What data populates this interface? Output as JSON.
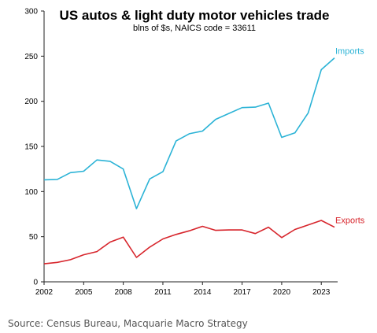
{
  "chart_data": {
    "type": "line",
    "title": "US autos & light duty motor vehicles trade",
    "subtitle": "blns of $s, NAICS code = 33611",
    "x": [
      2002,
      2003,
      2004,
      2005,
      2006,
      2007,
      2008,
      2009,
      2010,
      2011,
      2012,
      2013,
      2014,
      2015,
      2016,
      2017,
      2018,
      2019,
      2020,
      2021,
      2022,
      2023,
      2024
    ],
    "xticks": [
      "2002",
      "2005",
      "2008",
      "2011",
      "2014",
      "2017",
      "2020",
      "2023"
    ],
    "xtick_values": [
      2002,
      2005,
      2008,
      2011,
      2014,
      2017,
      2020,
      2023
    ],
    "xlim": [
      2002,
      2024
    ],
    "yticks": [
      "0",
      "50",
      "100",
      "150",
      "200",
      "250",
      "300"
    ],
    "ytick_values": [
      0,
      50,
      100,
      150,
      200,
      250,
      300
    ],
    "ylim": [
      0,
      300
    ],
    "grid": false,
    "series": [
      {
        "name": "Imports",
        "color": "#2bb3d6",
        "values": [
          113,
          113.5,
          121,
          122.5,
          135,
          133.5,
          125,
          81,
          114,
          122,
          156,
          164,
          167,
          180,
          186.5,
          193,
          193.5,
          198,
          160,
          165,
          187,
          235,
          248
        ]
      },
      {
        "name": "Exports",
        "color": "#d7252c",
        "values": [
          20,
          21.5,
          24.5,
          30,
          33.5,
          44,
          49.5,
          27,
          38.5,
          47.5,
          52.5,
          56.5,
          61.5,
          57,
          57.5,
          57.5,
          53.5,
          60.5,
          49,
          58,
          63,
          68,
          60.5
        ]
      }
    ]
  },
  "source": "Source: Census Bureau, Macquarie Macro Strategy"
}
